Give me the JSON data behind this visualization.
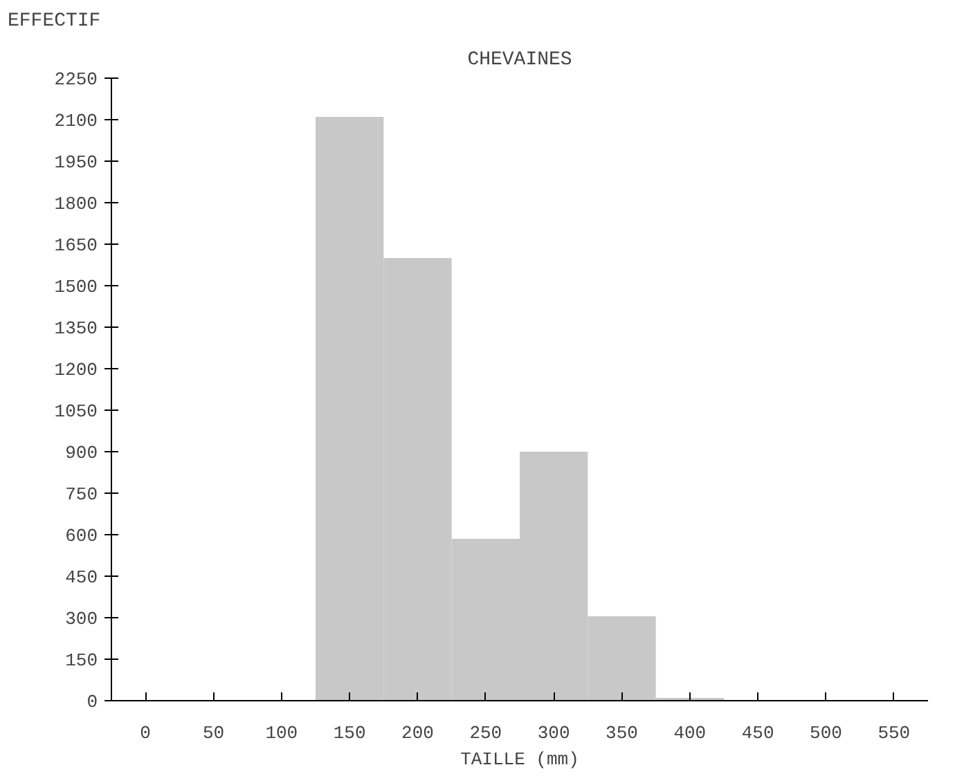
{
  "chart_data": {
    "type": "histogram",
    "title": "CHEVAINES",
    "xlabel": "TAILLE (mm)",
    "ylabel": "EFFECTIF",
    "bins": [
      75,
      125,
      175,
      225,
      275,
      325,
      375,
      425
    ],
    "values": [
      null,
      2110,
      1600,
      585,
      900,
      305,
      10
    ],
    "color": "#c8c8c8",
    "xlim": [
      -25,
      575
    ],
    "xticks": [
      0,
      50,
      100,
      150,
      200,
      250,
      300,
      350,
      400,
      450,
      500,
      550
    ],
    "ylim": [
      0,
      2250
    ],
    "yticks": [
      0,
      150,
      300,
      450,
      600,
      750,
      900,
      1050,
      1200,
      1350,
      1500,
      1650,
      1800,
      1950,
      2100,
      2250
    ],
    "grid": false
  }
}
